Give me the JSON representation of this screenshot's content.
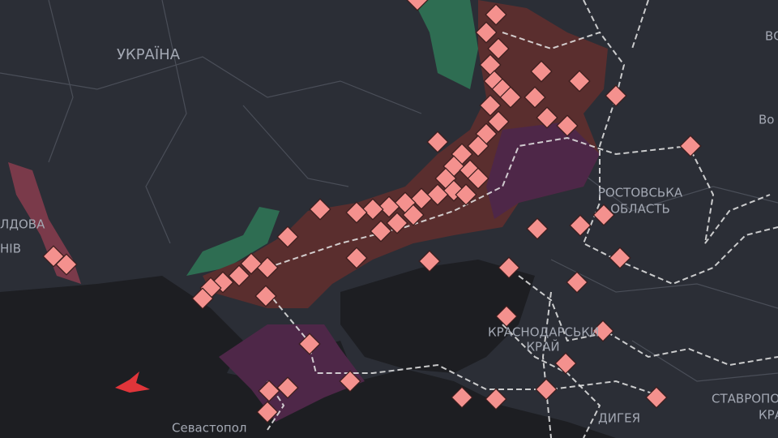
{
  "labels": {
    "ukraine": "УКРАЇНА",
    "rostov_1": "РОСТОВСЬКА",
    "rostov_2": "ОБЛАСТЬ",
    "krasnodar_1": "КРАСНОДАРСЬКИ",
    "krasnodar_2": "КРАЙ",
    "sevastopol": "Севастопол",
    "moldova": "ЛДОВА",
    "mykolaiv": "НІВ",
    "volgograd": "Во",
    "voronezh": "ВО",
    "stavropol_1": "СТАВРОПО",
    "stavropol_2": "КРА",
    "adygea": "ДИГЕЯ"
  }
}
